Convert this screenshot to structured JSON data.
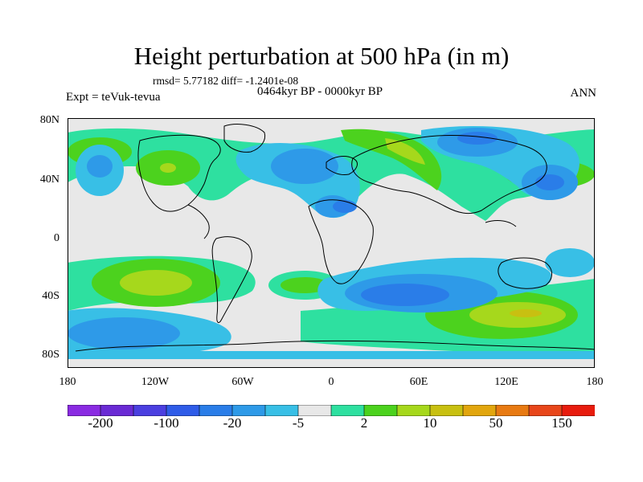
{
  "title": "Height perturbation at 500 hPa (in m)",
  "stats": "rmsd= 5.77182 diff= -1.2401e-08",
  "experiment": "Expt = teVuk-tevua",
  "period": "0464kyr BP - 0000kyr BP",
  "season": "ANN",
  "lat_ticks": [
    "80N",
    "40N",
    "0",
    "40S",
    "80S"
  ],
  "lon_ticks": [
    "180",
    "120W",
    "60W",
    "0",
    "60E",
    "120E",
    "180"
  ],
  "colorbar": {
    "colors": [
      "#8a2be2",
      "#6a2ad4",
      "#4b3fe0",
      "#2f5ce8",
      "#2a7de8",
      "#2e9ae8",
      "#38bfe6",
      "#e8e8e8",
      "#2ee0a0",
      "#4cd21e",
      "#a6d81c",
      "#c8c011",
      "#e2a60e",
      "#e87a12",
      "#e8461a",
      "#e81c0e"
    ],
    "labels": [
      "-200",
      "-100",
      "-20",
      "-5",
      "2",
      "10",
      "50",
      "150"
    ]
  },
  "palette": {
    "neutral": "#e8e8e8",
    "weak_neg": "#38bfe6",
    "mid_neg": "#2e9ae8",
    "strong_neg": "#2a7de8",
    "weak_pos": "#2ee0a0",
    "mid_pos": "#4cd21e",
    "strong_pos": "#a6d81c",
    "peak_pos": "#c8c011"
  }
}
